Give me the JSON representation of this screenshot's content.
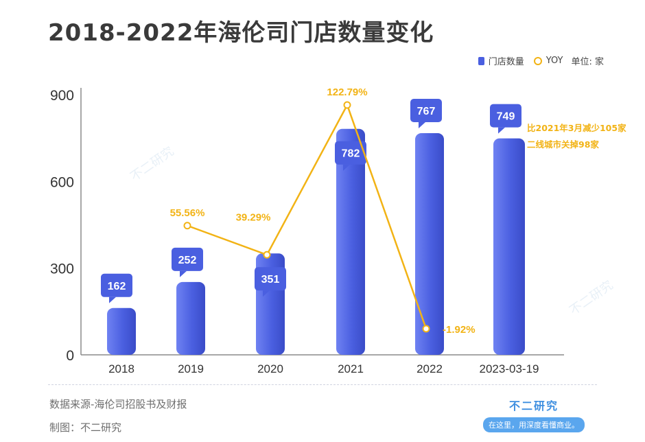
{
  "title": "2018-2022年海伦司门店数量变化",
  "legend": {
    "bar_label": "门店数量",
    "line_label": "YOY",
    "unit": "单位: 家"
  },
  "colors": {
    "bar": "#4a5fe0",
    "bar_light": "#6f82f2",
    "line": "#f2b315",
    "axis": "#8a8a8a"
  },
  "chart_data": {
    "type": "bar",
    "categories": [
      "2018",
      "2019",
      "2020",
      "2021",
      "2022",
      "2023-03-19"
    ],
    "series": [
      {
        "name": "门店数量",
        "type": "bar",
        "values": [
          162,
          252,
          351,
          782,
          767,
          749
        ],
        "labels": [
          "162",
          "252",
          "351",
          "782",
          "767",
          "749"
        ]
      },
      {
        "name": "YOY",
        "type": "line",
        "values": [
          null,
          55.56,
          39.29,
          122.79,
          -1.92,
          null
        ],
        "labels": [
          "",
          "55.56%",
          "39.29%",
          "122.79%",
          "-1.92%",
          ""
        ]
      }
    ],
    "yticks": [
      0,
      300,
      600,
      900
    ],
    "ylim": [
      0,
      920
    ],
    "annotation": [
      "比2021年3月减少105家",
      "二线城市关掉98家"
    ]
  },
  "footer": {
    "source": "数据来源-海伦司招股书及财报",
    "maker": "制图：不二研究"
  },
  "brand": {
    "name": "不二研究",
    "slogan": "在这里，用深度看懂商业。"
  },
  "watermark": "不二研究"
}
